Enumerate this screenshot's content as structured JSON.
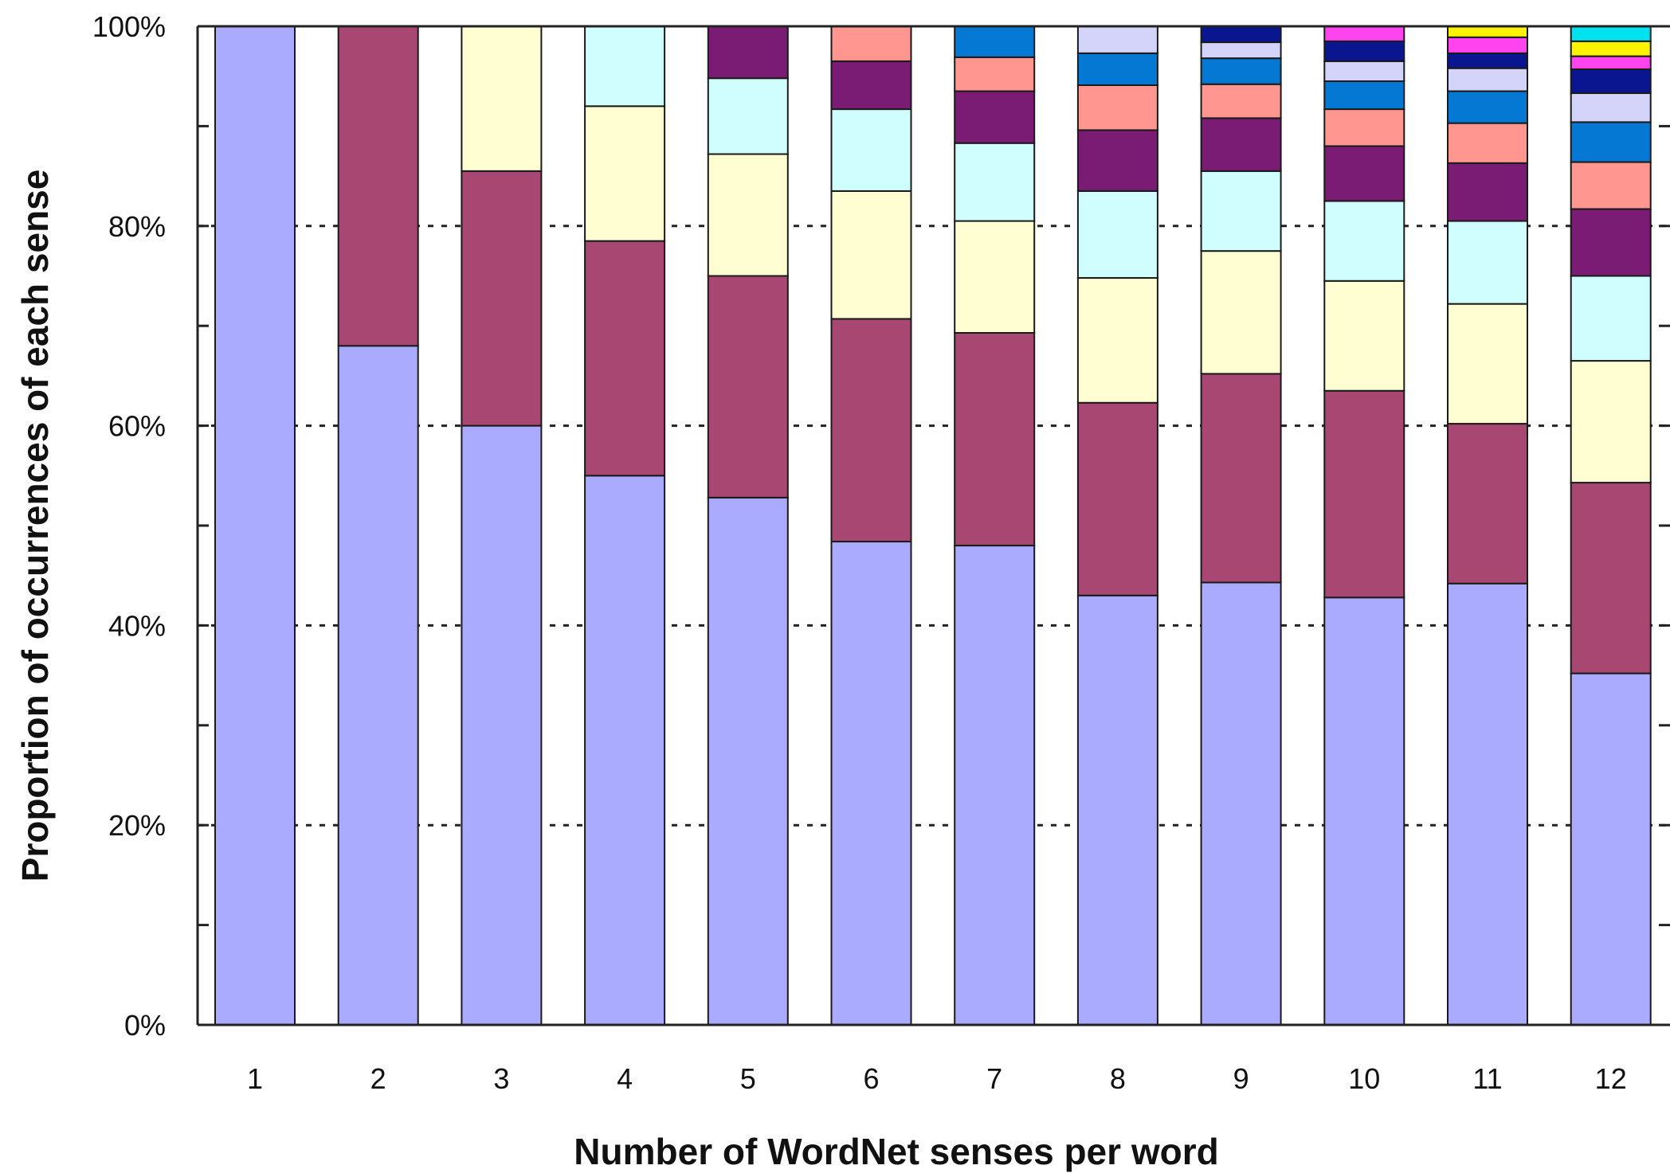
{
  "chart_data": {
    "type": "bar",
    "stacked": true,
    "title": "",
    "xlabel": "Number of WordNet senses per word",
    "ylabel": "Proportion of occurrences of each sense",
    "categories": [
      "1",
      "2",
      "3",
      "4",
      "5",
      "6",
      "7",
      "8",
      "9",
      "10",
      "11",
      "12"
    ],
    "ylim": [
      0,
      100
    ],
    "yticks": [
      "0%",
      "20%",
      "40%",
      "60%",
      "80%",
      "100%"
    ],
    "grid": "horizontal dotted at 20% steps",
    "legend": "none",
    "segment_colors": [
      "#aaaaff",
      "#a84872",
      "#fffdd2",
      "#d0fefe",
      "#7a1b74",
      "#ff9790",
      "#0578d4",
      "#d4d4fa",
      "#0a1590",
      "#ff44ef",
      "#fff200",
      "#00e2f0"
    ],
    "boundaries": [
      [
        100
      ],
      [
        68,
        100
      ],
      [
        60,
        85.5,
        100
      ],
      [
        55,
        78.5,
        92,
        100
      ],
      [
        52.8,
        75,
        87.2,
        94.8,
        100
      ],
      [
        48.4,
        70.7,
        83.5,
        91.7,
        96.5,
        100
      ],
      [
        48,
        69.3,
        80.5,
        88.3,
        93.5,
        96.9,
        100
      ],
      [
        43,
        62.3,
        74.8,
        83.5,
        89.6,
        94.1,
        97.3,
        100
      ],
      [
        44.3,
        65.2,
        77.5,
        85.5,
        90.8,
        94.2,
        96.8,
        98.4,
        100
      ],
      [
        42.8,
        63.5,
        74.5,
        82.5,
        88,
        91.7,
        94.5,
        96.5,
        98.5,
        100
      ],
      [
        44.2,
        60.2,
        72.2,
        80.5,
        86.3,
        90.3,
        93.5,
        95.8,
        97.3,
        98.9,
        100
      ],
      [
        35.2,
        54.3,
        66.5,
        75,
        81.7,
        86.4,
        90.4,
        93.3,
        95.7,
        97,
        98.5,
        100
      ]
    ]
  }
}
